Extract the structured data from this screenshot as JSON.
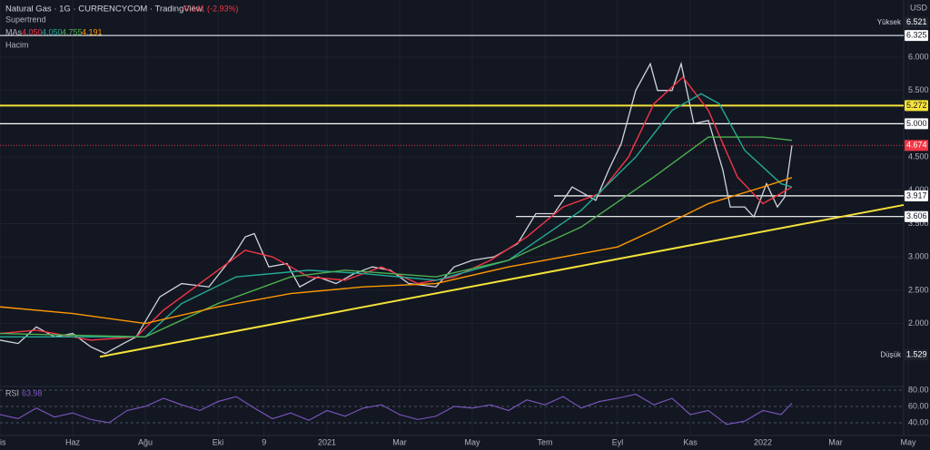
{
  "header": {
    "title": "Natural Gas · 1G · CURRENCYCOM · TradingView",
    "change": "-0.141 (-2.93%)",
    "indicators": [
      "Supertrend",
      "MAs",
      "Hacim"
    ],
    "ma_values": [
      "4.050",
      "4.050",
      "4.755",
      "4.191"
    ],
    "currency": "USD"
  },
  "chart_data": [
    {
      "type": "line",
      "xlim": [
        0,
        24.875
      ],
      "ylim": [
        1.068,
        6.858
      ],
      "xticks": [
        {
          "value": 0,
          "label": "Nis"
        },
        {
          "value": 2,
          "label": "Haz"
        },
        {
          "value": 4,
          "label": "Ağu"
        },
        {
          "value": 6,
          "label": "Eki"
        },
        {
          "value": 7.27,
          "label": "9"
        },
        {
          "value": 9,
          "label": "2021"
        },
        {
          "value": 11,
          "label": "Mar"
        },
        {
          "value": 13,
          "label": "May"
        },
        {
          "value": 15,
          "label": "Tem"
        },
        {
          "value": 17,
          "label": "Eyl"
        },
        {
          "value": 19,
          "label": "Kas"
        },
        {
          "value": 21,
          "label": "2022"
        },
        {
          "value": 23,
          "label": "Mar"
        },
        {
          "value": 25,
          "label": "May"
        }
      ],
      "yticks": [
        {
          "value": 6,
          "label": "6.000"
        },
        {
          "value": 5.5,
          "label": "5.500"
        },
        {
          "value": 4.5,
          "label": "4.500"
        },
        {
          "value": 4,
          "label": "4.000"
        },
        {
          "value": 3.5,
          "label": "3.500"
        },
        {
          "value": 3,
          "label": "3.000"
        },
        {
          "value": 2.5,
          "label": "2.500"
        },
        {
          "value": 2,
          "label": "2.000"
        }
      ],
      "series": [
        {
          "name": "Natural Gas",
          "color": "#d1d4dc",
          "x": [
            0,
            0.5,
            1,
            1.5,
            2,
            2.5,
            2.9,
            3.4,
            3.75,
            4.4,
            5,
            5.75,
            6.4,
            6.75,
            7,
            7.4,
            7.9,
            8.25,
            8.75,
            9.25,
            9.75,
            10.25,
            10.75,
            11.25,
            12,
            12.5,
            13,
            13.6,
            14.25,
            14.75,
            15.25,
            15.75,
            16.4,
            16.75,
            17.1,
            17.5,
            17.9,
            18.1,
            18.5,
            18.75,
            19.1,
            19.5,
            19.9,
            20.1,
            20.5,
            20.75,
            21.1,
            21.4,
            21.6,
            21.8
          ],
          "values": [
            1.75,
            1.7,
            1.95,
            1.8,
            1.85,
            1.65,
            1.55,
            1.7,
            1.8,
            2.4,
            2.6,
            2.55,
            3.0,
            3.3,
            3.35,
            2.85,
            2.9,
            2.55,
            2.7,
            2.6,
            2.75,
            2.85,
            2.8,
            2.6,
            2.55,
            2.85,
            2.95,
            3.0,
            3.2,
            3.65,
            3.65,
            4.05,
            3.85,
            4.3,
            4.7,
            5.5,
            5.9,
            5.5,
            5.5,
            5.9,
            5.0,
            5.05,
            4.3,
            3.75,
            3.75,
            3.6,
            4.1,
            3.75,
            3.9,
            4.674
          ]
        },
        {
          "name": "MA1",
          "color": "#f23645",
          "x": [
            0,
            1,
            2.5,
            3.75,
            4.5,
            5.5,
            6.75,
            7.5,
            8.5,
            9.5,
            10.5,
            11.5,
            12.5,
            13.5,
            14.5,
            15.5,
            16.5,
            17.3,
            18,
            18.8,
            19.5,
            20.3,
            21,
            21.8
          ],
          "values": [
            1.85,
            1.9,
            1.75,
            1.8,
            2.2,
            2.6,
            3.1,
            3.0,
            2.7,
            2.65,
            2.85,
            2.6,
            2.7,
            2.95,
            3.3,
            3.75,
            3.95,
            4.5,
            5.3,
            5.7,
            5.2,
            4.2,
            3.8,
            4.05
          ]
        },
        {
          "name": "MA2",
          "color": "#22ab94",
          "x": [
            0,
            4,
            5,
            6.5,
            8.5,
            10,
            12,
            14,
            16,
            17.5,
            18.5,
            19.3,
            19.8,
            20.5,
            21.5,
            21.8
          ],
          "values": [
            1.8,
            1.8,
            2.3,
            2.7,
            2.8,
            2.75,
            2.65,
            2.95,
            3.7,
            4.5,
            5.2,
            5.45,
            5.3,
            4.6,
            4.1,
            4.05
          ]
        },
        {
          "name": "MA3",
          "color": "#4caf50",
          "x": [
            0,
            4,
            6,
            8,
            9.5,
            12,
            14,
            16,
            18,
            19.5,
            21,
            21.8
          ],
          "values": [
            1.85,
            1.8,
            2.3,
            2.7,
            2.8,
            2.7,
            2.95,
            3.45,
            4.2,
            4.8,
            4.8,
            4.75
          ]
        },
        {
          "name": "MA4",
          "color": "#ff9800",
          "x": [
            0,
            2,
            4,
            6,
            8,
            10,
            12,
            14,
            16,
            17,
            18,
            19.5,
            21,
            21.8
          ],
          "values": [
            2.25,
            2.15,
            2.0,
            2.25,
            2.45,
            2.55,
            2.6,
            2.85,
            3.05,
            3.15,
            3.4,
            3.8,
            4.05,
            4.19
          ]
        }
      ],
      "levels": [
        {
          "value": 6.325,
          "label": "6.325",
          "color": "#d1d4dc",
          "from": 0
        },
        {
          "value": 5.272,
          "label": "5.272",
          "color": "#f5e23a",
          "from": 0
        },
        {
          "value": 5.0,
          "label": "5.000",
          "color": "#ffffff",
          "from": 0
        },
        {
          "value": 3.917,
          "label": "3.917",
          "color": "#ffffff",
          "from": 15.25
        },
        {
          "value": 3.606,
          "label": "3.606",
          "color": "#ffffff",
          "from": 14.2
        }
      ],
      "last_price": {
        "value": 4.674,
        "label": "4.674",
        "color": "#f23645"
      },
      "high": {
        "name": "Yüksek",
        "value": 6.521,
        "label": "6.521"
      },
      "low": {
        "name": "Düşük",
        "value": 1.529,
        "label": "1.529"
      },
      "trendline": {
        "x": [
          2.75,
          24.875
        ],
        "values": [
          1.5,
          3.78
        ],
        "color": "#f5e23a"
      }
    },
    {
      "type": "rsi",
      "title": "RSI",
      "current": "63.98",
      "color": "#7e57c2",
      "ylim": [
        24.4,
        82.2
      ],
      "yticks": [
        {
          "value": 80,
          "label": "80.00"
        },
        {
          "value": 60,
          "label": "60.00"
        },
        {
          "value": 40,
          "label": "40.00"
        }
      ],
      "x": [
        0,
        0.5,
        1,
        1.5,
        2,
        2.5,
        3,
        3.5,
        4,
        4.5,
        5,
        5.5,
        6,
        6.5,
        7,
        7.5,
        8,
        8.5,
        9,
        9.5,
        10,
        10.5,
        11,
        11.5,
        12,
        12.5,
        13,
        13.5,
        14,
        14.5,
        15,
        15.5,
        16,
        16.5,
        17,
        17.5,
        18,
        18.5,
        19,
        19.5,
        20,
        20.5,
        21,
        21.5,
        21.8
      ],
      "values": [
        50,
        45,
        58,
        47,
        52,
        44,
        40,
        55,
        60,
        70,
        62,
        55,
        66,
        72,
        58,
        45,
        52,
        43,
        55,
        48,
        58,
        62,
        50,
        44,
        48,
        60,
        58,
        62,
        55,
        68,
        62,
        72,
        58,
        66,
        70,
        75,
        62,
        70,
        50,
        55,
        38,
        42,
        55,
        50,
        63.98
      ]
    }
  ]
}
